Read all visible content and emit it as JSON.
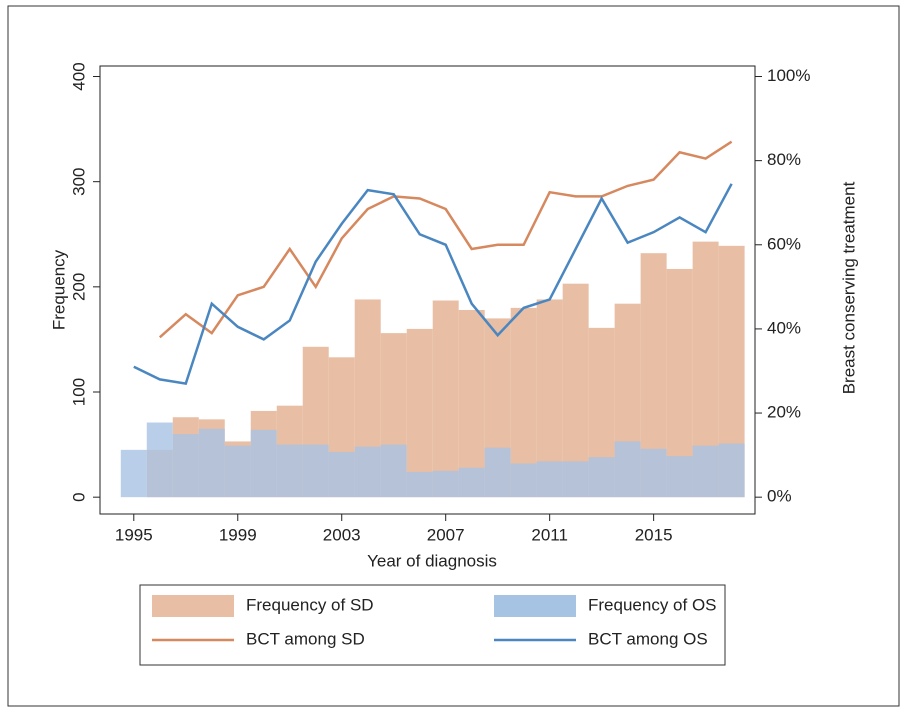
{
  "chart_data": {
    "type": "combo",
    "xlabel": "Year of diagnosis",
    "ylabel": "Frequency",
    "y2label": "Breast conserving treatment",
    "xlim": [
      1993.7,
      2018.9
    ],
    "xticks": [
      1995,
      1999,
      2003,
      2007,
      2011,
      2015
    ],
    "ylim": [
      -16,
      410
    ],
    "yticks": [
      0,
      100,
      200,
      300,
      400
    ],
    "y2lim": [
      -4,
      102.5
    ],
    "y2ticks": [
      {
        "value": 0,
        "label": "0%"
      },
      {
        "value": 20,
        "label": "20%"
      },
      {
        "value": 40,
        "label": "40%"
      },
      {
        "value": 60,
        "label": "60%"
      },
      {
        "value": 80,
        "label": "80%"
      },
      {
        "value": 100,
        "label": "100%"
      }
    ],
    "bins": [
      1994.5,
      1995.5,
      1996.5,
      1997.5,
      1998.5,
      1999.5,
      2000.5,
      2001.5,
      2002.5,
      2003.5,
      2004.5,
      2005.5,
      2006.5,
      2007.5,
      2008.5,
      2009.5,
      2010.5,
      2011.5,
      2012.5,
      2013.5,
      2014.5,
      2015.5,
      2016.5,
      2017.5,
      2018.5
    ],
    "x": [
      1995,
      1996,
      1997,
      1998,
      1999,
      2000,
      2001,
      2002,
      2003,
      2004,
      2005,
      2006,
      2007,
      2008,
      2009,
      2010,
      2011,
      2012,
      2013,
      2014,
      2015,
      2016,
      2017,
      2018
    ],
    "series": [
      {
        "name": "Frequency of SD",
        "type": "histogram",
        "color": "#e8bea4",
        "values": [
          0,
          45,
          76,
          74,
          53,
          82,
          87,
          143,
          133,
          188,
          156,
          160,
          187,
          178,
          170,
          180,
          188,
          203,
          161,
          184,
          232,
          217,
          243,
          239
        ]
      },
      {
        "name": "Frequency of OS",
        "type": "histogram",
        "color": "#a7c3e3",
        "values": [
          45,
          71,
          60,
          65,
          49,
          64,
          50,
          50,
          43,
          48,
          50,
          24,
          25,
          28,
          47,
          32,
          34,
          34,
          38,
          53,
          46,
          39,
          49,
          51
        ]
      },
      {
        "name": "BCT among SD",
        "type": "line",
        "axis": "y2",
        "color": "#d6885e",
        "values": [
          null,
          38,
          43.5,
          39,
          48,
          50,
          59,
          50,
          61.5,
          68.5,
          71.5,
          71,
          68.5,
          59,
          60,
          60,
          72.5,
          71.5,
          71.5,
          74,
          75.5,
          82,
          80.5,
          84.5
        ]
      },
      {
        "name": "BCT among OS",
        "type": "line",
        "axis": "y2",
        "color": "#4a86c0",
        "values": [
          31,
          28,
          27,
          46,
          40.5,
          37.5,
          42,
          56,
          65,
          73,
          72,
          62.5,
          60,
          46,
          38.5,
          45,
          47,
          59,
          71,
          60.5,
          63,
          66.5,
          63,
          74.5
        ]
      }
    ]
  }
}
